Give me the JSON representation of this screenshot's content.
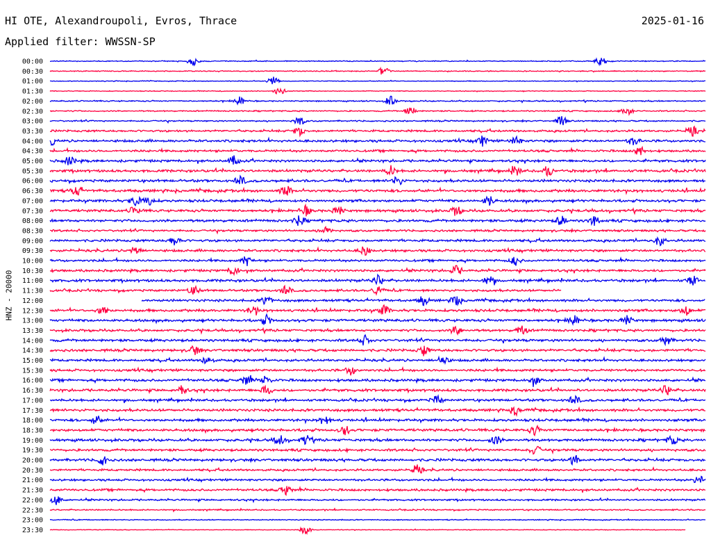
{
  "header": {
    "station": "HI OTE, Alexandroupoli, Evros, Thrace",
    "date": "2025-01-16",
    "filter": "Applied filter: WWSSN-SP",
    "channel": "HNZ - 20000"
  },
  "colors": {
    "even_row": "#0000ee",
    "odd_row": "#ff0040"
  },
  "chart_data": {
    "type": "line",
    "description_of_series": "24-hour helicorder; each row is a 30-minute seismogram trace, alternating blue and red",
    "rows": [
      {
        "label": "00:00",
        "amp": 0.6,
        "events": [
          0.22,
          0.84
        ]
      },
      {
        "label": "00:30",
        "amp": 0.6,
        "events": [
          0.51
        ]
      },
      {
        "label": "01:00",
        "amp": 0.5,
        "events": [
          0.34
        ]
      },
      {
        "label": "01:30",
        "amp": 0.5,
        "events": [
          0.35
        ]
      },
      {
        "label": "02:00",
        "amp": 0.8,
        "events": [
          0.29,
          0.52
        ]
      },
      {
        "label": "02:30",
        "amp": 0.8,
        "events": [
          0.55,
          0.88
        ]
      },
      {
        "label": "03:00",
        "amp": 0.9,
        "events": [
          0.38,
          0.78
        ]
      },
      {
        "label": "03:30",
        "amp": 1.3,
        "events": [
          0.38,
          0.98
        ]
      },
      {
        "label": "04:00",
        "amp": 1.5,
        "events": [
          0.0,
          0.66,
          0.71,
          0.89
        ]
      },
      {
        "label": "04:30",
        "amp": 1.4,
        "events": [
          0.9
        ]
      },
      {
        "label": "05:00",
        "amp": 1.5,
        "events": [
          0.03,
          0.28
        ]
      },
      {
        "label": "05:30",
        "amp": 1.6,
        "events": [
          0.52,
          0.71,
          0.76
        ]
      },
      {
        "label": "06:00",
        "amp": 1.6,
        "events": [
          0.29,
          0.53
        ]
      },
      {
        "label": "06:30",
        "amp": 1.7,
        "events": [
          0.04,
          0.36
        ]
      },
      {
        "label": "07:00",
        "amp": 1.6,
        "events": [
          0.13,
          0.15,
          0.67
        ]
      },
      {
        "label": "07:30",
        "amp": 1.6,
        "events": [
          0.13,
          0.39,
          0.44,
          0.62
        ]
      },
      {
        "label": "08:00",
        "amp": 1.6,
        "events": [
          0.38,
          0.78,
          0.83
        ]
      },
      {
        "label": "08:30",
        "amp": 1.3,
        "events": [
          0.42
        ]
      },
      {
        "label": "09:00",
        "amp": 1.5,
        "events": [
          0.19,
          0.93
        ]
      },
      {
        "label": "09:30",
        "amp": 1.5,
        "events": [
          0.13,
          0.48
        ]
      },
      {
        "label": "10:00",
        "amp": 1.4,
        "events": [
          0.3,
          0.71
        ]
      },
      {
        "label": "10:30",
        "amp": 1.5,
        "events": [
          0.28,
          0.62
        ]
      },
      {
        "label": "11:00",
        "amp": 1.6,
        "events": [
          0.5,
          0.67,
          0.98
        ]
      },
      {
        "label": "11:30",
        "amp": 1.4,
        "events": [
          0.22,
          0.36,
          0.5
        ],
        "end": 0.78
      },
      {
        "label": "12:00",
        "amp": 1.5,
        "events": [
          0.33,
          0.57,
          0.62
        ],
        "start": 0.14
      },
      {
        "label": "12:30",
        "amp": 1.6,
        "events": [
          0.08,
          0.31,
          0.51,
          0.97
        ]
      },
      {
        "label": "13:00",
        "amp": 1.6,
        "events": [
          0.33,
          0.8,
          0.88
        ]
      },
      {
        "label": "13:30",
        "amp": 1.5,
        "events": [
          0.62,
          0.72
        ]
      },
      {
        "label": "14:00",
        "amp": 1.6,
        "events": [
          0.48,
          0.94
        ]
      },
      {
        "label": "14:30",
        "amp": 1.6,
        "events": [
          0.22,
          0.57
        ]
      },
      {
        "label": "15:00",
        "amp": 1.5,
        "events": [
          0.24,
          0.6
        ]
      },
      {
        "label": "15:30",
        "amp": 1.5,
        "events": [
          0.46
        ]
      },
      {
        "label": "16:00",
        "amp": 1.6,
        "events": [
          0.3,
          0.33,
          0.74
        ]
      },
      {
        "label": "16:30",
        "amp": 1.6,
        "events": [
          0.2,
          0.33,
          0.94
        ]
      },
      {
        "label": "17:00",
        "amp": 1.5,
        "events": [
          0.59,
          0.8
        ]
      },
      {
        "label": "17:30",
        "amp": 1.6,
        "events": [
          0.71
        ]
      },
      {
        "label": "18:00",
        "amp": 1.6,
        "events": [
          0.07,
          0.42
        ]
      },
      {
        "label": "18:30",
        "amp": 1.6,
        "events": [
          0.45,
          0.74
        ]
      },
      {
        "label": "19:00",
        "amp": 1.6,
        "events": [
          0.35,
          0.39,
          0.68,
          0.95
        ]
      },
      {
        "label": "19:30",
        "amp": 1.5,
        "events": [
          0.74
        ]
      },
      {
        "label": "20:00",
        "amp": 1.6,
        "events": [
          0.08,
          0.8
        ]
      },
      {
        "label": "20:30",
        "amp": 1.3,
        "events": [
          0.56
        ]
      },
      {
        "label": "21:00",
        "amp": 1.3,
        "events": [
          0.99
        ]
      },
      {
        "label": "21:30",
        "amp": 1.4,
        "events": [
          0.36
        ]
      },
      {
        "label": "22:00",
        "amp": 1.1,
        "events": [
          0.01
        ]
      },
      {
        "label": "22:30",
        "amp": 0.8,
        "events": []
      },
      {
        "label": "23:00",
        "amp": 0.6,
        "events": []
      },
      {
        "label": "23:30",
        "amp": 0.4,
        "events": [
          0.39
        ],
        "end": 0.97
      }
    ]
  }
}
